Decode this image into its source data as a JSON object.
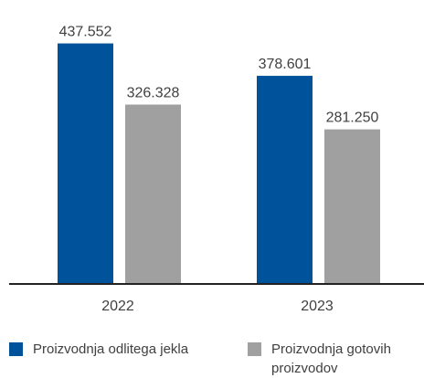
{
  "chart_data": {
    "type": "bar",
    "categories": [
      "2022",
      "2023"
    ],
    "series": [
      {
        "name": "Proizvodnja odlitega jekla",
        "values": [
          437552,
          378601
        ],
        "labels": [
          "437.552",
          "378.601"
        ],
        "color": "#00539B"
      },
      {
        "name": "Proizvodnja gotovih proizvodov",
        "values": [
          326328,
          281250
        ],
        "labels": [
          "326.328",
          "281.250"
        ],
        "color": "#A0A0A0"
      }
    ],
    "ylim": [
      0,
      480000
    ],
    "grid": false,
    "legend_position": "bottom"
  }
}
